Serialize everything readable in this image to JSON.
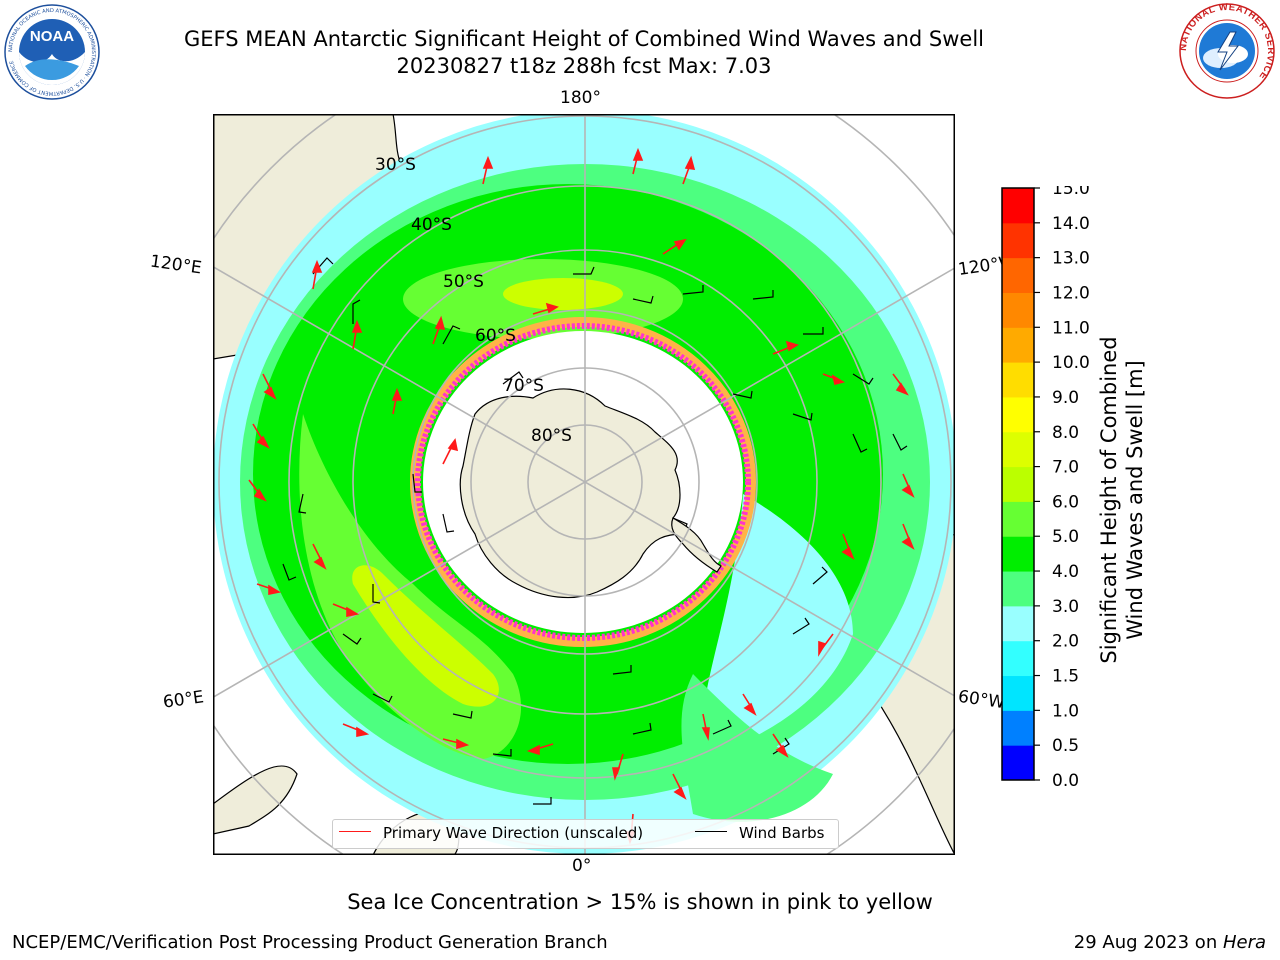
{
  "title": {
    "line1": "GEFS MEAN Antarctic Significant Height of Combined Wind Waves and Swell",
    "line2": "20230827 t18z 288h fcst   Max: 7.03"
  },
  "logos": {
    "noaa_text": "NOAA",
    "noaa_ring": "NATIONAL OCEANIC AND ATMOSPHERIC ADMINISTRATION · U.S. DEPARTMENT OF COMMERCE",
    "nws_ring": "NATIONAL WEATHER SERVICE",
    "noaa_icon": "noaa-logo-icon",
    "nws_icon": "nws-logo-icon"
  },
  "map": {
    "projection": "south-polar-stereographic",
    "lon_labels": {
      "top": "180°",
      "bottom": "0°",
      "upper_left": "120°E",
      "lower_left": "60°E",
      "upper_right": "120°W",
      "lower_right": "60°W"
    },
    "lat_labels": [
      "30°S",
      "40°S",
      "50°S",
      "60°S",
      "70°S",
      "80°S"
    ],
    "colors": {
      "land": "#efedda",
      "ice_region": "#ffffff",
      "grid": "#b5b5b5",
      "coast": "#000000",
      "wave_arrow": "#ff1a1a",
      "wind_barb": "#000000",
      "ice_edge_pink": "#ff33cc",
      "ice_edge_yellow": "#ffb347"
    }
  },
  "legend": {
    "primary_wave": "Primary Wave Direction (unscaled)",
    "wind_barbs": "Wind Barbs"
  },
  "colorbar": {
    "label_line1": "Significant Height of Combined",
    "label_line2": "Wind Waves and Swell [m]",
    "ticks": [
      "0.0",
      "0.5",
      "1.0",
      "1.5",
      "2.0",
      "3.0",
      "4.0",
      "5.0",
      "6.0",
      "7.0",
      "8.0",
      "9.0",
      "10.0",
      "11.0",
      "12.0",
      "13.0",
      "14.0",
      "15.0"
    ],
    "colors": [
      "#0000ff",
      "#0080ff",
      "#00e5ff",
      "#33ffff",
      "#99ffff",
      "#4dff80",
      "#00ee00",
      "#66ff33",
      "#bbff00",
      "#ddff00",
      "#ffff00",
      "#ffdd00",
      "#ffaa00",
      "#ff8800",
      "#ff6600",
      "#ff3300",
      "#ff0000"
    ]
  },
  "note": "Sea Ice Concentration > 15% is shown in pink to yellow",
  "footer": {
    "left": "NCEP/EMC/Verification Post Processing Product Generation Branch",
    "right_prefix": "29 Aug 2023 on ",
    "right_host": "Hera"
  }
}
